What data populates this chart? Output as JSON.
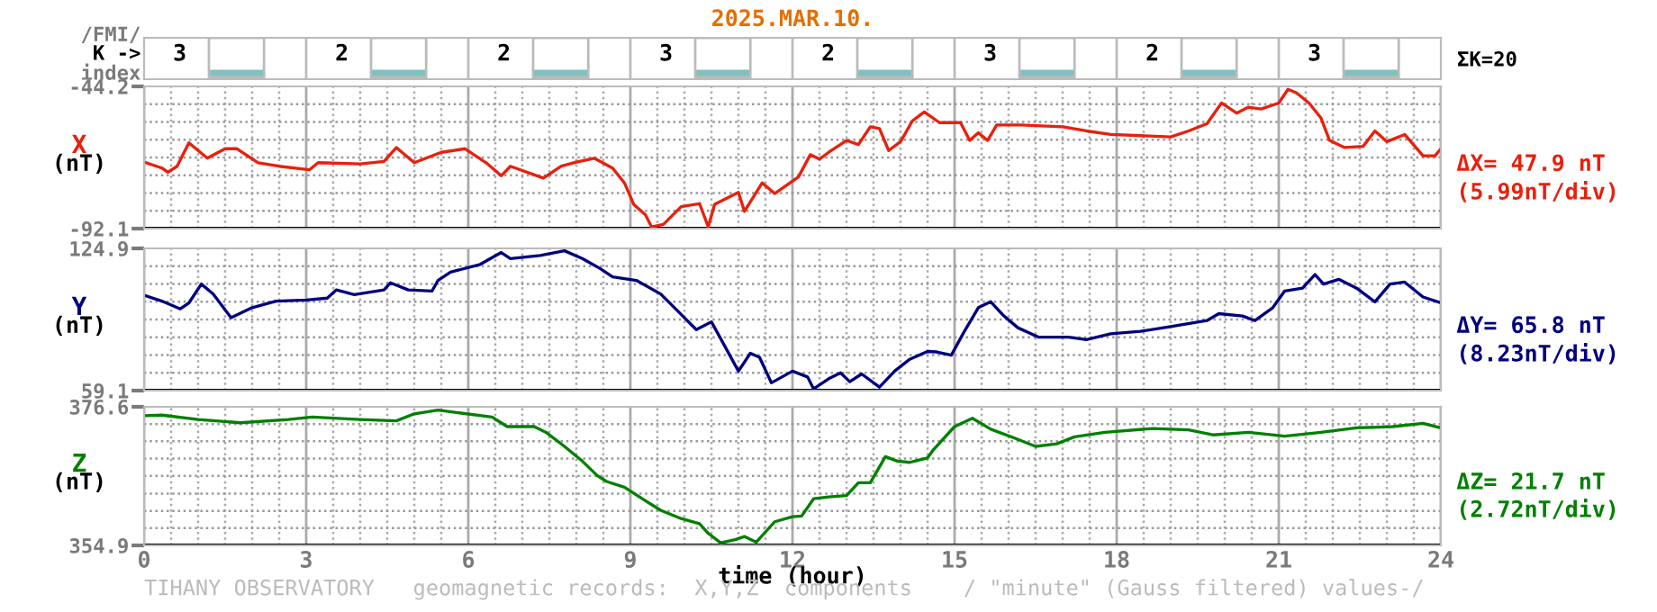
{
  "chart_data": [
    {
      "type": "other",
      "title": "2025.MAR.10.",
      "values": [
        3,
        2,
        2,
        3,
        2,
        3,
        2,
        3
      ],
      "data_labels": true,
      "annotations": [
        "/FMI/",
        "K ->",
        "index",
        "ΣK=20"
      ]
    },
    {
      "type": "line",
      "ylabel": "X",
      "color": "#e8200c",
      "annotations": [
        "(nT)",
        "ΔX= 47.9 nT",
        "(5.99nT/div)"
      ],
      "tick_labels": "y",
      "grid": true,
      "xlim": [
        0,
        24
      ],
      "ylim": [
        -92.1,
        -44.2
      ],
      "yticks": [
        -44.2,
        {
          "value": -50.19,
          "label": null
        },
        {
          "value": -56.18,
          "label": null
        },
        {
          "value": -62.17,
          "label": null
        },
        {
          "value": -68.16,
          "label": null
        },
        {
          "value": -74.15,
          "label": null
        },
        {
          "value": -80.14,
          "label": null
        },
        {
          "value": -86.13,
          "label": null
        },
        -92.1
      ],
      "xticks": [
        0,
        {
          "value": 0.5,
          "label": null
        },
        {
          "value": 1,
          "label": null
        },
        {
          "value": 1.5,
          "label": null
        },
        {
          "value": 2,
          "label": null
        },
        {
          "value": 2.5,
          "label": null
        },
        3,
        {
          "value": 3.5,
          "label": null
        },
        {
          "value": 4,
          "label": null
        },
        {
          "value": 4.5,
          "label": null
        },
        {
          "value": 5,
          "label": null
        },
        {
          "value": 5.5,
          "label": null
        },
        6,
        {
          "value": 6.5,
          "label": null
        },
        {
          "value": 7,
          "label": null
        },
        {
          "value": 7.5,
          "label": null
        },
        {
          "value": 8,
          "label": null
        },
        {
          "value": 8.5,
          "label": null
        },
        9,
        {
          "value": 9.5,
          "label": null
        },
        {
          "value": 10,
          "label": null
        },
        {
          "value": 10.5,
          "label": null
        },
        {
          "value": 11,
          "label": null
        },
        {
          "value": 11.5,
          "label": null
        },
        12,
        {
          "value": 12.5,
          "label": null
        },
        {
          "value": 13,
          "label": null
        },
        {
          "value": 13.5,
          "label": null
        },
        {
          "value": 14,
          "label": null
        },
        {
          "value": 14.5,
          "label": null
        },
        15,
        {
          "value": 15.5,
          "label": null
        },
        {
          "value": 16,
          "label": null
        },
        {
          "value": 16.5,
          "label": null
        },
        {
          "value": 17,
          "label": null
        },
        {
          "value": 17.5,
          "label": null
        },
        18,
        {
          "value": 18.5,
          "label": null
        },
        {
          "value": 19,
          "label": null
        },
        {
          "value": 19.5,
          "label": null
        },
        {
          "value": 20,
          "label": null
        },
        {
          "value": 20.5,
          "label": null
        },
        21,
        {
          "value": 21.5,
          "label": null
        },
        {
          "value": 22,
          "label": null
        },
        {
          "value": 22.5,
          "label": null
        },
        {
          "value": 23,
          "label": null
        },
        {
          "value": 23.5,
          "label": null
        },
        24
      ],
      "x": [
        0,
        0.33,
        0.44,
        0.61,
        0.83,
        1.17,
        1.5,
        1.72,
        2.11,
        2.5,
        3.06,
        3.22,
        4.0,
        4.44,
        4.67,
        5.0,
        5.5,
        5.94,
        6.33,
        6.61,
        6.78,
        7.39,
        7.72,
        8.0,
        8.33,
        8.67,
        8.89,
        9.06,
        9.28,
        9.39,
        9.61,
        9.94,
        10.28,
        10.44,
        10.56,
        11.0,
        11.11,
        11.44,
        11.67,
        12.11,
        12.33,
        12.5,
        12.67,
        13.0,
        13.22,
        13.44,
        13.61,
        13.78,
        14.0,
        14.22,
        14.44,
        14.72,
        15.11,
        15.28,
        15.44,
        15.61,
        15.78,
        16.22,
        17.0,
        17.44,
        17.89,
        18.44,
        19.0,
        19.33,
        19.67,
        19.94,
        20.22,
        20.44,
        20.67,
        21.0,
        21.17,
        21.33,
        21.56,
        21.78,
        21.94,
        22.22,
        22.56,
        22.78,
        23.0,
        23.33,
        23.67,
        23.89,
        24.0
      ],
      "values": [
        -69.7,
        -71.7,
        -73.1,
        -71.1,
        -63.2,
        -68.4,
        -65.2,
        -65.2,
        -69.9,
        -71.1,
        -72.3,
        -69.9,
        -70.3,
        -69.5,
        -64.8,
        -69.9,
        -66.4,
        -65.2,
        -69.9,
        -74.3,
        -71.1,
        -75.1,
        -71.1,
        -69.7,
        -68.4,
        -71.7,
        -76.7,
        -83.9,
        -87.5,
        -91.5,
        -90.7,
        -84.7,
        -83.7,
        -91.5,
        -83.9,
        -79.9,
        -86.3,
        -76.7,
        -80.3,
        -74.7,
        -67.2,
        -68.7,
        -66.4,
        -62.4,
        -63.8,
        -57.8,
        -58.4,
        -65.8,
        -62.8,
        -55.8,
        -52.8,
        -56.4,
        -56.4,
        -62.4,
        -59.8,
        -62.4,
        -57.2,
        -57.2,
        -57.8,
        -59.2,
        -60.4,
        -60.8,
        -61.2,
        -59.2,
        -56.8,
        -49.8,
        -53.2,
        -51.2,
        -51.8,
        -49.8,
        -45.2,
        -46.4,
        -49.8,
        -54.8,
        -62.4,
        -64.8,
        -64.4,
        -59.2,
        -62.8,
        -60.4,
        -67.6,
        -67.6,
        -65.2
      ]
    },
    {
      "type": "line",
      "ylabel": "Y",
      "color": "#000080",
      "annotations": [
        "(nT)",
        "ΔY= 65.8 nT",
        "(8.23nT/div)"
      ],
      "tick_labels": "y",
      "grid": true,
      "xlim": [
        0,
        24
      ],
      "ylim": [
        59.1,
        124.9
      ],
      "xticks": [
        0,
        {
          "value": 0.5,
          "label": null
        },
        {
          "value": 1,
          "label": null
        },
        {
          "value": 1.5,
          "label": null
        },
        {
          "value": 2,
          "label": null
        },
        {
          "value": 2.5,
          "label": null
        },
        3,
        {
          "value": 3.5,
          "label": null
        },
        {
          "value": 4,
          "label": null
        },
        {
          "value": 4.5,
          "label": null
        },
        {
          "value": 5,
          "label": null
        },
        {
          "value": 5.5,
          "label": null
        },
        6,
        {
          "value": 6.5,
          "label": null
        },
        {
          "value": 7,
          "label": null
        },
        {
          "value": 7.5,
          "label": null
        },
        {
          "value": 8,
          "label": null
        },
        {
          "value": 8.5,
          "label": null
        },
        9,
        {
          "value": 9.5,
          "label": null
        },
        {
          "value": 10,
          "label": null
        },
        {
          "value": 10.5,
          "label": null
        },
        {
          "value": 11,
          "label": null
        },
        {
          "value": 11.5,
          "label": null
        },
        12,
        {
          "value": 12.5,
          "label": null
        },
        {
          "value": 13,
          "label": null
        },
        {
          "value": 13.5,
          "label": null
        },
        {
          "value": 14,
          "label": null
        },
        {
          "value": 14.5,
          "label": null
        },
        15,
        {
          "value": 15.5,
          "label": null
        },
        {
          "value": 16,
          "label": null
        },
        {
          "value": 16.5,
          "label": null
        },
        {
          "value": 17,
          "label": null
        },
        {
          "value": 17.5,
          "label": null
        },
        18,
        {
          "value": 18.5,
          "label": null
        },
        {
          "value": 19,
          "label": null
        },
        {
          "value": 19.5,
          "label": null
        },
        {
          "value": 20,
          "label": null
        },
        {
          "value": 20.5,
          "label": null
        },
        21,
        {
          "value": 21.5,
          "label": null
        },
        {
          "value": 22,
          "label": null
        },
        {
          "value": 22.5,
          "label": null
        },
        {
          "value": 23,
          "label": null
        },
        {
          "value": 23.5,
          "label": null
        },
        24
      ],
      "yticks": [
        124.9,
        {
          "value": 116.7,
          "label": null
        },
        {
          "value": 108.5,
          "label": null
        },
        {
          "value": 100.2,
          "label": null
        },
        {
          "value": 92.0,
          "label": null
        },
        {
          "value": 83.8,
          "label": null
        },
        {
          "value": 75.6,
          "label": null
        },
        {
          "value": 67.3,
          "label": null
        },
        59.1
      ],
      "x": [
        0,
        0.33,
        0.67,
        0.83,
        1.06,
        1.28,
        1.61,
        2.0,
        2.44,
        3.0,
        3.39,
        3.56,
        3.89,
        4.44,
        4.56,
        4.89,
        5.33,
        5.44,
        5.67,
        6.22,
        6.61,
        6.78,
        7.33,
        7.78,
        8.11,
        8.44,
        8.67,
        9.11,
        9.56,
        9.89,
        10.22,
        10.5,
        10.67,
        11.0,
        11.22,
        11.39,
        11.61,
        12.0,
        12.28,
        12.39,
        12.67,
        12.89,
        13.06,
        13.28,
        13.61,
        13.89,
        14.17,
        14.5,
        14.67,
        14.94,
        15.17,
        15.44,
        15.67,
        15.89,
        16.17,
        16.56,
        17.11,
        17.44,
        17.89,
        18.44,
        19.0,
        19.67,
        19.89,
        20.33,
        20.56,
        20.89,
        21.11,
        21.44,
        21.67,
        21.83,
        22.11,
        22.44,
        22.78,
        23.06,
        23.33,
        23.67,
        24.0
      ],
      "values": [
        103.2,
        100.5,
        96.9,
        99.7,
        108.4,
        103.8,
        92.8,
        97.5,
        100.5,
        101.0,
        101.9,
        105.7,
        103.5,
        105.7,
        109.0,
        105.7,
        105.2,
        110.1,
        113.9,
        117.5,
        123.0,
        120.2,
        121.6,
        123.8,
        120.2,
        115.6,
        111.7,
        110.1,
        103.8,
        95.6,
        87.3,
        90.9,
        83.2,
        68.1,
        76.4,
        74.5,
        62.7,
        68.1,
        65.4,
        59.9,
        64.6,
        67.3,
        63.2,
        66.8,
        60.7,
        68.1,
        73.6,
        77.2,
        77.0,
        75.5,
        86.0,
        97.5,
        100.2,
        94.2,
        88.2,
        83.8,
        83.8,
        82.7,
        85.4,
        86.5,
        88.7,
        91.5,
        94.7,
        93.6,
        91.5,
        97.5,
        105.2,
        106.5,
        112.8,
        108.4,
        110.6,
        106.5,
        100.2,
        108.4,
        109.3,
        102.4,
        99.7
      ]
    },
    {
      "type": "line",
      "ylabel": "Z",
      "xlabel": "time (hour)",
      "color": "#008000",
      "annotations": [
        "(nT)",
        "ΔZ= 21.7 nT",
        "(2.72nT/div)",
        "TIHANY OBSERVATORY   geomagnetic records:  X,Y,Z  components    / \"minute\" (Gauss filtered) values-/"
      ],
      "grid": true,
      "xlim": [
        0,
        24
      ],
      "ylim": [
        354.9,
        376.6
      ],
      "xticks": [
        0,
        {
          "value": 0.5,
          "label": null
        },
        {
          "value": 1,
          "label": null
        },
        {
          "value": 1.5,
          "label": null
        },
        {
          "value": 2,
          "label": null
        },
        {
          "value": 2.5,
          "label": null
        },
        3,
        {
          "value": 3.5,
          "label": null
        },
        {
          "value": 4,
          "label": null
        },
        {
          "value": 4.5,
          "label": null
        },
        {
          "value": 5,
          "label": null
        },
        {
          "value": 5.5,
          "label": null
        },
        6,
        {
          "value": 6.5,
          "label": null
        },
        {
          "value": 7,
          "label": null
        },
        {
          "value": 7.5,
          "label": null
        },
        {
          "value": 8,
          "label": null
        },
        {
          "value": 8.5,
          "label": null
        },
        9,
        {
          "value": 9.5,
          "label": null
        },
        {
          "value": 10,
          "label": null
        },
        {
          "value": 10.5,
          "label": null
        },
        {
          "value": 11,
          "label": null
        },
        {
          "value": 11.5,
          "label": null
        },
        12,
        {
          "value": 12.5,
          "label": null
        },
        {
          "value": 13,
          "label": null
        },
        {
          "value": 13.5,
          "label": null
        },
        {
          "value": 14,
          "label": null
        },
        {
          "value": 14.5,
          "label": null
        },
        15,
        {
          "value": 15.5,
          "label": null
        },
        {
          "value": 16,
          "label": null
        },
        {
          "value": 16.5,
          "label": null
        },
        {
          "value": 17,
          "label": null
        },
        {
          "value": 17.5,
          "label": null
        },
        18,
        {
          "value": 18.5,
          "label": null
        },
        {
          "value": 19,
          "label": null
        },
        {
          "value": 19.5,
          "label": null
        },
        {
          "value": 20,
          "label": null
        },
        {
          "value": 20.5,
          "label": null
        },
        21,
        {
          "value": 21.5,
          "label": null
        },
        {
          "value": 22,
          "label": null
        },
        {
          "value": 22.5,
          "label": null
        },
        {
          "value": 23,
          "label": null
        },
        {
          "value": 23.5,
          "label": null
        },
        24
      ],
      "yticks": [
        376.6,
        {
          "value": 373.9,
          "label": null
        },
        {
          "value": 371.2,
          "label": null
        },
        {
          "value": 368.5,
          "label": null
        },
        {
          "value": 365.8,
          "label": null
        },
        {
          "value": 363.0,
          "label": null
        },
        {
          "value": 360.3,
          "label": null
        },
        {
          "value": 357.6,
          "label": null
        },
        354.9
      ],
      "x": [
        0,
        0.33,
        1.0,
        1.78,
        2.67,
        3.11,
        4.0,
        4.67,
        5.0,
        5.44,
        5.78,
        6.44,
        6.72,
        7.22,
        7.44,
        7.78,
        8.11,
        8.39,
        8.56,
        8.89,
        9.22,
        9.56,
        9.94,
        10.28,
        10.44,
        10.67,
        10.94,
        11.11,
        11.33,
        11.67,
        12.0,
        12.17,
        12.39,
        12.67,
        13.0,
        13.22,
        13.44,
        13.72,
        13.94,
        14.17,
        14.5,
        14.61,
        15.0,
        15.33,
        15.67,
        16.11,
        16.5,
        16.89,
        17.22,
        17.78,
        18.67,
        19.33,
        19.78,
        20.44,
        21.11,
        21.78,
        22.44,
        23.11,
        23.67,
        24.0
      ],
      "values": [
        375.2,
        375.3,
        374.6,
        374.1,
        374.6,
        375.0,
        374.6,
        374.4,
        375.5,
        376.1,
        375.7,
        375.0,
        373.5,
        373.5,
        372.6,
        370.4,
        368.1,
        365.8,
        364.9,
        364.0,
        362.2,
        360.4,
        359.1,
        358.3,
        356.8,
        355.3,
        355.8,
        356.3,
        355.4,
        358.6,
        359.4,
        359.5,
        362.2,
        362.5,
        362.7,
        364.7,
        364.7,
        368.8,
        368.1,
        367.9,
        368.6,
        369.9,
        373.5,
        374.8,
        373.1,
        371.7,
        370.4,
        370.8,
        371.9,
        372.6,
        373.2,
        373.0,
        372.2,
        372.6,
        372.0,
        372.6,
        373.3,
        373.5,
        374.0,
        373.3
      ]
    }
  ]
}
